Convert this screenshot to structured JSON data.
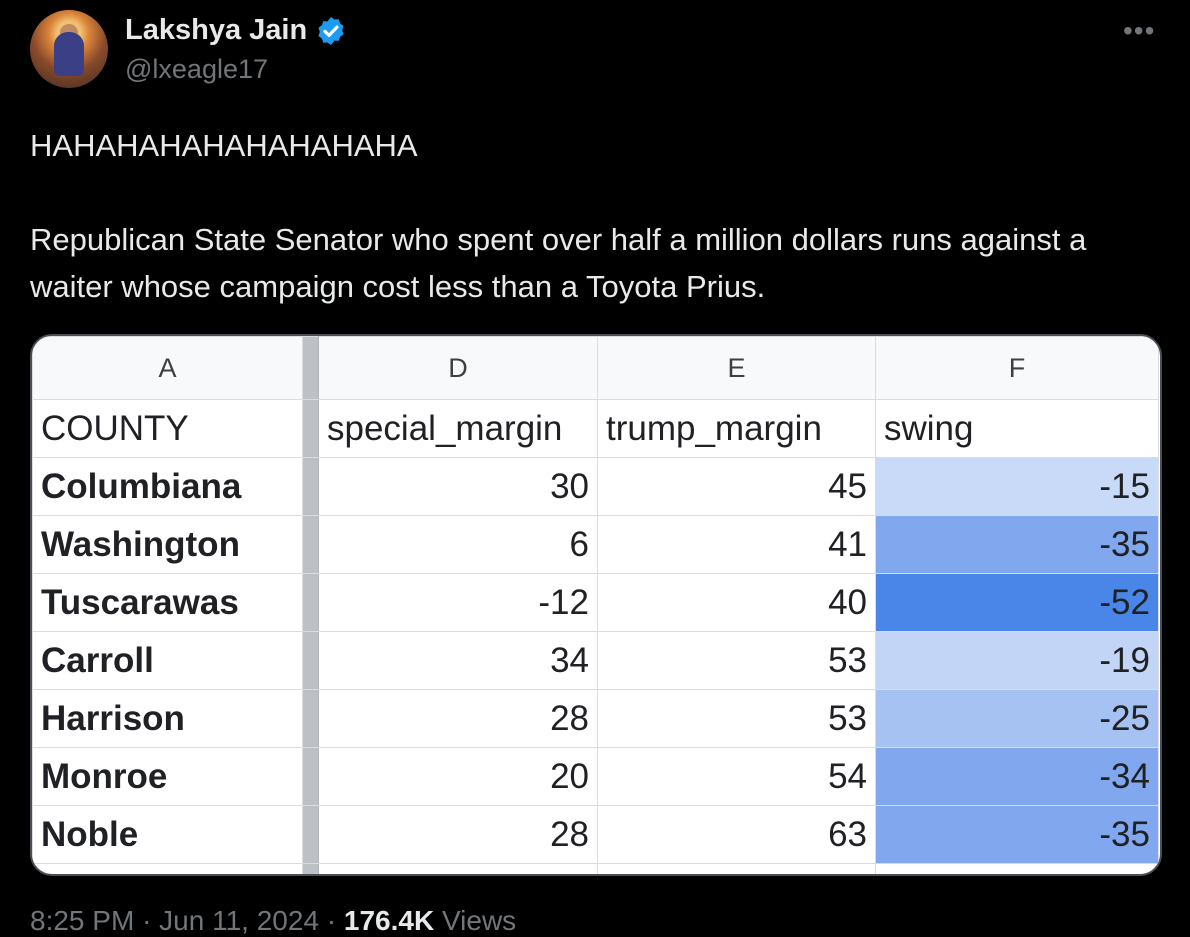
{
  "tweet": {
    "author_name": "Lakshya Jain",
    "handle": "@lxeagle17",
    "more_label": "•••",
    "text_line1": "HAHAHAHAHAHAHAHAHA",
    "text_line2": "Republican State Senator who spent over half a million dollars runs against a waiter whose campaign cost less than a Toyota Prius.",
    "time": "8:25 PM",
    "date": "Jun 11, 2024",
    "views_count": "176.4K",
    "views_label": "Views",
    "dot": "·"
  },
  "colors": {
    "verified": "#1d9bf0",
    "swing_15": "#c9daf8",
    "swing_19": "#c2d5f7",
    "swing_25": "#a6c2f2",
    "swing_34_35": "#81a8ee",
    "swing_52": "#4a86e8"
  },
  "sheet": {
    "columns": [
      "A",
      "D",
      "E",
      "F"
    ],
    "headers": [
      "COUNTY",
      "special_margin",
      "trump_margin",
      "swing"
    ],
    "rows": [
      {
        "county": "Columbiana",
        "special": "30",
        "trump": "45",
        "swing": "-15",
        "color": "#c9daf8"
      },
      {
        "county": "Washington",
        "special": "6",
        "trump": "41",
        "swing": "-35",
        "color": "#81a8ee"
      },
      {
        "county": "Tuscarawas",
        "special": "-12",
        "trump": "40",
        "swing": "-52",
        "color": "#4a86e8"
      },
      {
        "county": "Carroll",
        "special": "34",
        "trump": "53",
        "swing": "-19",
        "color": "#c2d5f7"
      },
      {
        "county": "Harrison",
        "special": "28",
        "trump": "53",
        "swing": "-25",
        "color": "#a6c2f2"
      },
      {
        "county": "Monroe",
        "special": "20",
        "trump": "54",
        "swing": "-34",
        "color": "#81a8ee"
      },
      {
        "county": "Noble",
        "special": "28",
        "trump": "63",
        "swing": "-35",
        "color": "#81a8ee"
      }
    ]
  }
}
